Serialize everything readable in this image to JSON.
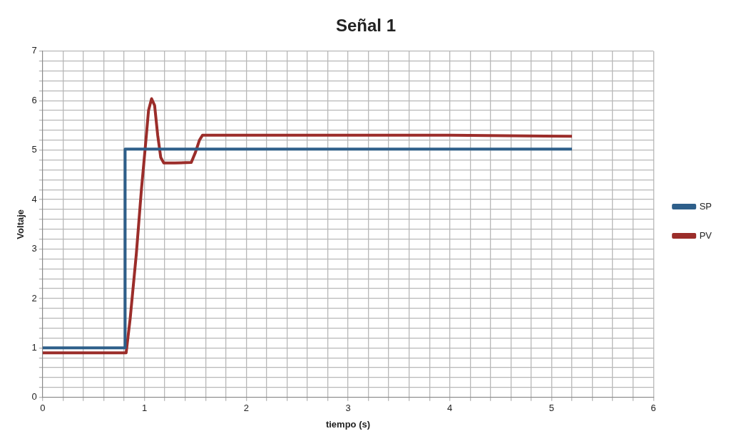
{
  "chart_data": {
    "type": "line",
    "title": "Señal 1",
    "xlabel": "tiempo (s)",
    "ylabel": "Voltaje",
    "xlim": [
      0,
      6
    ],
    "ylim": [
      0,
      7
    ],
    "xticks": [
      0,
      {
        "value": 0.2,
        "label": null
      },
      {
        "value": 0.4,
        "label": null
      },
      {
        "value": 0.6,
        "label": null
      },
      {
        "value": 0.8,
        "label": null
      },
      1,
      {
        "value": 1.2,
        "label": null
      },
      {
        "value": 1.4,
        "label": null
      },
      {
        "value": 1.6,
        "label": null
      },
      {
        "value": 1.8,
        "label": null
      },
      2,
      {
        "value": 2.2,
        "label": null
      },
      {
        "value": 2.4,
        "label": null
      },
      {
        "value": 2.6,
        "label": null
      },
      {
        "value": 2.8,
        "label": null
      },
      3,
      {
        "value": 3.2,
        "label": null
      },
      {
        "value": 3.4,
        "label": null
      },
      {
        "value": 3.6,
        "label": null
      },
      {
        "value": 3.8,
        "label": null
      },
      4,
      {
        "value": 4.2,
        "label": null
      },
      {
        "value": 4.4,
        "label": null
      },
      {
        "value": 4.6,
        "label": null
      },
      {
        "value": 4.8,
        "label": null
      },
      5,
      {
        "value": 5.2,
        "label": null
      },
      {
        "value": 5.4,
        "label": null
      },
      {
        "value": 5.6,
        "label": null
      },
      {
        "value": 5.8,
        "label": null
      },
      6
    ],
    "yticks": [
      0,
      {
        "value": 0.2,
        "label": null
      },
      {
        "value": 0.4,
        "label": null
      },
      {
        "value": 0.6,
        "label": null
      },
      {
        "value": 0.8,
        "label": null
      },
      1,
      {
        "value": 1.2,
        "label": null
      },
      {
        "value": 1.4,
        "label": null
      },
      {
        "value": 1.6,
        "label": null
      },
      {
        "value": 1.8,
        "label": null
      },
      2,
      {
        "value": 2.2,
        "label": null
      },
      {
        "value": 2.4,
        "label": null
      },
      {
        "value": 2.6,
        "label": null
      },
      {
        "value": 2.8,
        "label": null
      },
      3,
      {
        "value": 3.2,
        "label": null
      },
      {
        "value": 3.4,
        "label": null
      },
      {
        "value": 3.6,
        "label": null
      },
      {
        "value": 3.8,
        "label": null
      },
      4,
      {
        "value": 4.2,
        "label": null
      },
      {
        "value": 4.4,
        "label": null
      },
      {
        "value": 4.6,
        "label": null
      },
      {
        "value": 4.8,
        "label": null
      },
      5,
      {
        "value": 5.2,
        "label": null
      },
      {
        "value": 5.4,
        "label": null
      },
      {
        "value": 5.6,
        "label": null
      },
      {
        "value": 5.8,
        "label": null
      },
      6,
      {
        "value": 6.2,
        "label": null
      },
      {
        "value": 6.4,
        "label": null
      },
      {
        "value": 6.6,
        "label": null
      },
      {
        "value": 6.8,
        "label": null
      },
      7
    ],
    "grid": true,
    "legend": "right",
    "marker": "none",
    "line_style": "solid",
    "series": [
      {
        "name": "SP",
        "color": "#2e5f8a",
        "x": [
          0,
          0.81,
          0.81,
          5.2
        ],
        "values": [
          1.0,
          1.0,
          5.02,
          5.02
        ]
      },
      {
        "name": "PV",
        "color": "#9b2d2a",
        "x": [
          0,
          0.82,
          0.86,
          0.92,
          0.97,
          1.01,
          1.04,
          1.07,
          1.1,
          1.13,
          1.16,
          1.19,
          1.3,
          1.46,
          1.5,
          1.54,
          1.57,
          2,
          3,
          4,
          5.2
        ],
        "values": [
          0.9,
          0.9,
          1.6,
          2.9,
          4.2,
          5.1,
          5.8,
          6.04,
          5.9,
          5.3,
          4.85,
          4.74,
          4.74,
          4.75,
          4.95,
          5.2,
          5.3,
          5.3,
          5.3,
          5.3,
          5.28
        ]
      }
    ]
  }
}
